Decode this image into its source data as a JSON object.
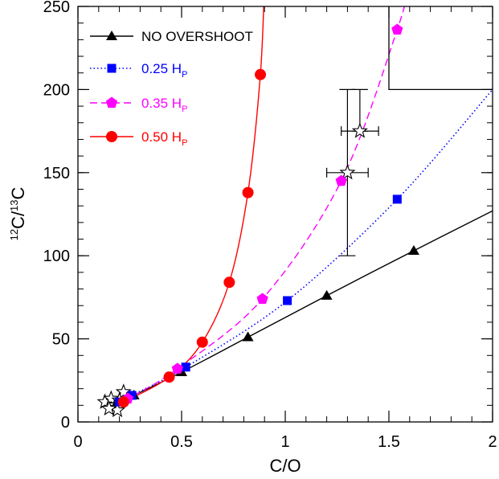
{
  "chart_data": {
    "type": "line",
    "title": "",
    "xlabel": "C/O",
    "ylabel": {
      "sup1": "12",
      "base1": "C/",
      "sup2": "13",
      "base2": "C"
    },
    "xlim": [
      0,
      2
    ],
    "ylim": [
      0,
      250
    ],
    "xticks": [
      0,
      0.5,
      1,
      1.5,
      2
    ],
    "xtick_labels": [
      "0",
      "0.5",
      "1",
      "1.5",
      "2"
    ],
    "yticks": [
      0,
      50,
      100,
      150,
      200,
      250
    ],
    "ytick_labels": [
      "0",
      "50",
      "100",
      "150",
      "200",
      "250"
    ],
    "grid": false,
    "legend_position": "top-left",
    "series": [
      {
        "name": "NO OVERSHOOT",
        "subscript": "",
        "color": "#000000",
        "marker": "triangle",
        "line_style": "solid",
        "line_end": [
          2.0,
          127
        ],
        "x": [
          0.19,
          0.27,
          0.5,
          0.82,
          1.2,
          1.62
        ],
        "y": [
          12,
          16,
          30,
          51,
          76,
          103
        ]
      },
      {
        "name": "0.25 H",
        "subscript": "P",
        "color": "#0000ff",
        "marker": "square",
        "line_style": "dotted",
        "line_end": [
          2.0,
          200
        ],
        "x": [
          0.2,
          0.26,
          0.52,
          1.01,
          1.54
        ],
        "y": [
          12,
          16,
          33,
          73,
          134
        ]
      },
      {
        "name": "0.35 H",
        "subscript": "P",
        "color": "#ff00ff",
        "marker": "pentagon",
        "line_style": "dashed",
        "line_end": [
          1.6,
          265
        ],
        "x": [
          0.24,
          0.48,
          0.89,
          1.27,
          1.54
        ],
        "y": [
          14,
          32,
          74,
          145,
          236
        ]
      },
      {
        "name": "0.50 H",
        "subscript": "P",
        "color": "#ff0000",
        "marker": "circle",
        "line_style": "solid",
        "line_end": [
          0.9,
          265
        ],
        "x": [
          0.22,
          0.44,
          0.6,
          0.73,
          0.82,
          0.88
        ],
        "y": [
          12,
          27,
          48,
          84,
          138,
          209
        ]
      }
    ],
    "observations": [
      {
        "x": 1.3,
        "y": 150,
        "xerr": 0.1,
        "yerr_lo": 50,
        "yerr_hi": 50
      },
      {
        "x": 1.36,
        "y": 175,
        "xerr": 0.09,
        "yerr_lo": 0,
        "yerr_hi": 25
      },
      {
        "x": 0.13,
        "y": 12,
        "xerr": 0,
        "yerr_lo": 0,
        "yerr_hi": 0
      },
      {
        "x": 0.16,
        "y": 14,
        "xerr": 0,
        "yerr_lo": 0,
        "yerr_hi": 0
      },
      {
        "x": 0.18,
        "y": 10,
        "xerr": 0,
        "yerr_lo": 0,
        "yerr_hi": 0
      },
      {
        "x": 0.19,
        "y": 7,
        "xerr": 0,
        "yerr_lo": 0,
        "yerr_hi": 0
      },
      {
        "x": 0.22,
        "y": 18,
        "xerr": 0,
        "yerr_lo": 0,
        "yerr_hi": 0
      },
      {
        "x": 0.15,
        "y": 8,
        "xerr": 0,
        "yerr_lo": 0,
        "yerr_hi": 0
      },
      {
        "x": 0.2,
        "y": 13,
        "xerr": 0,
        "yerr_lo": 0,
        "yerr_hi": 0
      }
    ],
    "limit_box": {
      "x_min": 1.5,
      "y_min": 200
    }
  }
}
